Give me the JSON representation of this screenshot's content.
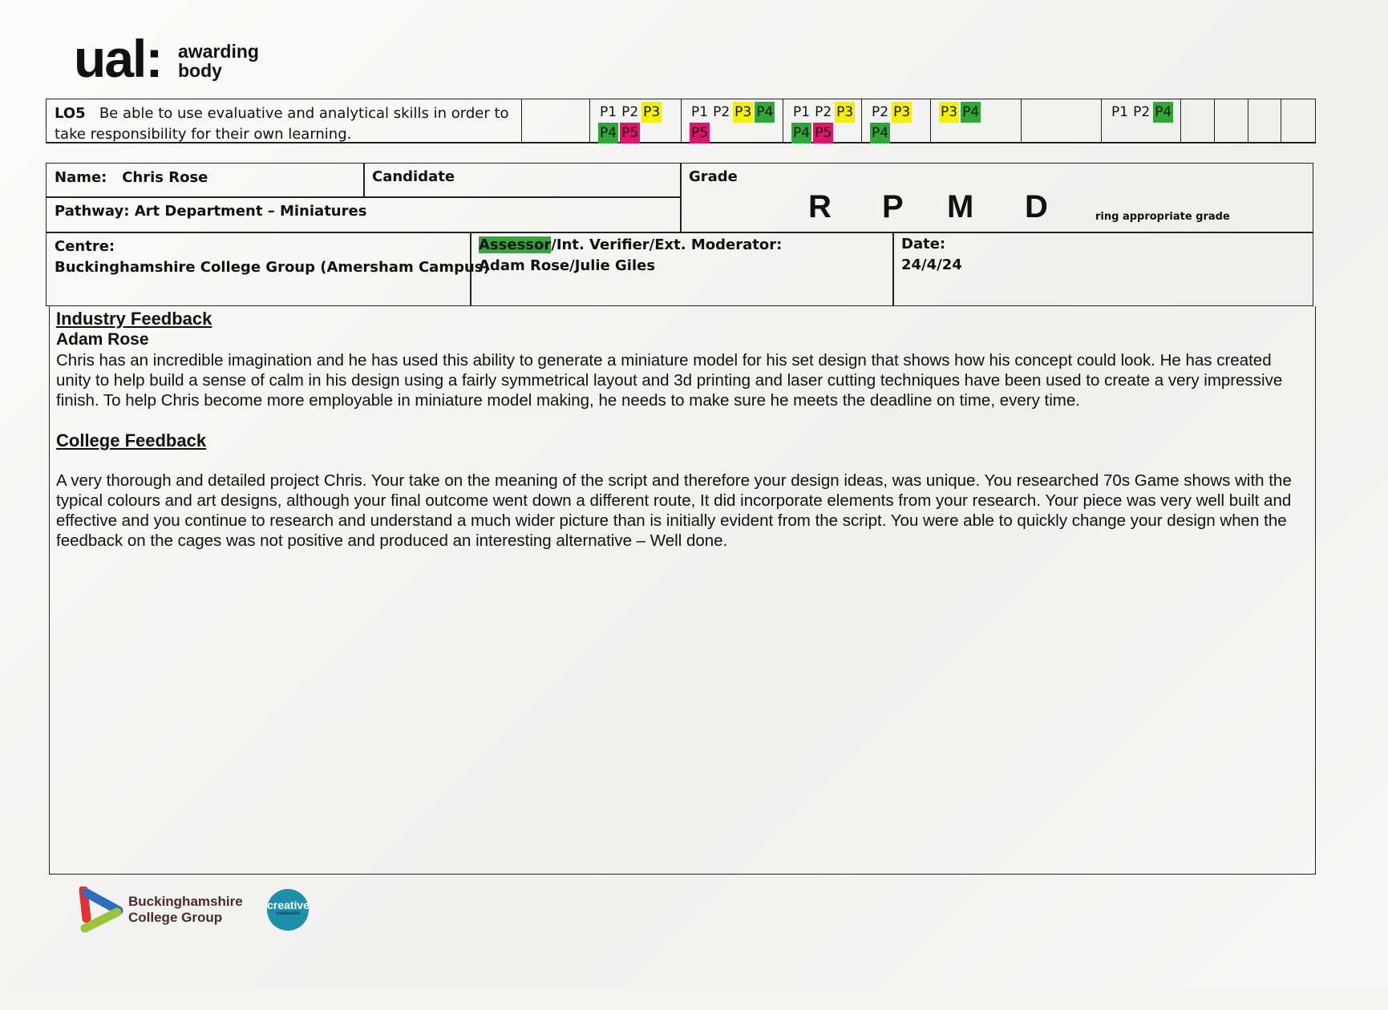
{
  "header": {
    "logo_main": "ual:",
    "logo_sub_1": "awarding",
    "logo_sub_2": "body"
  },
  "lo5": {
    "code": "LO5",
    "text": "Be able to use evaluative and analytical skills  in order to take responsibility for their own learning.",
    "cells": [
      [],
      [
        {
          "t": "P1",
          "c": ""
        },
        {
          "t": "P2",
          "c": ""
        },
        {
          "t": "P3",
          "c": "y"
        },
        {
          "t": "P4",
          "c": "g"
        },
        {
          "t": "P5",
          "c": "r"
        }
      ],
      [
        {
          "t": "P1",
          "c": ""
        },
        {
          "t": "P2",
          "c": ""
        },
        {
          "t": "P3",
          "c": "y"
        },
        {
          "t": "P4",
          "c": "g"
        },
        {
          "t": "P5",
          "c": "r"
        }
      ],
      [
        {
          "t": "P1",
          "c": ""
        },
        {
          "t": "P2",
          "c": ""
        },
        {
          "t": "P3",
          "c": "y"
        },
        {
          "t": "P4",
          "c": "g"
        },
        {
          "t": "P5",
          "c": "r"
        }
      ],
      [
        {
          "t": "P2",
          "c": ""
        },
        {
          "t": "P3",
          "c": "y"
        },
        {
          "t": "P4",
          "c": "g"
        }
      ],
      [
        {
          "t": "P3",
          "c": "y"
        },
        {
          "t": "P4",
          "c": "g"
        }
      ],
      [],
      [
        {
          "t": "P1",
          "c": ""
        },
        {
          "t": "P2",
          "c": ""
        },
        {
          "t": "P4",
          "c": "g"
        }
      ],
      [],
      [],
      [],
      []
    ]
  },
  "info": {
    "name_label": "Name:",
    "name_value": "Chris Rose",
    "candidate_label": "Candidate",
    "grade_label": "Grade",
    "grades": [
      "R",
      "P",
      "M",
      "D"
    ],
    "grade_note": "ring appropriate grade",
    "pathway_label": "Pathway:",
    "pathway_value": "Art Department – Miniatures",
    "centre_label": "Centre:",
    "centre_value": "Buckinghamshire College Group (Amersham Campus)",
    "assessor_highlight": "Assessor",
    "assessor_label_rest": "/Int. Verifier/Ext. Moderator:",
    "assessor_value": "Adam Rose/Julie Giles",
    "date_label": "Date:",
    "date_value": "24/4/24"
  },
  "feedback": {
    "industry_heading": "Industry Feedback",
    "industry_author": "Adam Rose",
    "industry_text": "Chris has an incredible imagination and he has used this ability to generate a miniature model for his set design that shows how his concept could look. He has created unity to help build a sense of calm in his design using a fairly symmetrical layout and 3d printing and laser cutting techniques have been used to create a very impressive finish. To help Chris become more employable in miniature model making, he needs to make sure he meets the deadline on time, every time.",
    "college_heading": "College Feedback",
    "college_text": "A very thorough and detailed project Chris. Your take on the meaning of the script and therefore your design ideas, was unique. You researched 70s Game shows with the typical colours and art designs, although your final outcome went down a different route, It did incorporate elements from your research.   Your piece was very well built and effective and you continue to research and understand a much wider picture than is initially evident from the script.  You were able to quickly change your design when the feedback on the cages was not positive and produced an interesting alternative – Well done."
  },
  "footer": {
    "bcg_line1": "Buckinghamshire",
    "bcg_line2": "College Group",
    "creative": "creative",
    "creative_sub": "mediaskills"
  },
  "colors": {
    "yellow": "#f3f000",
    "green": "#2ea836",
    "pink": "#e0146a",
    "creative_blue": "#1e8fa8"
  }
}
